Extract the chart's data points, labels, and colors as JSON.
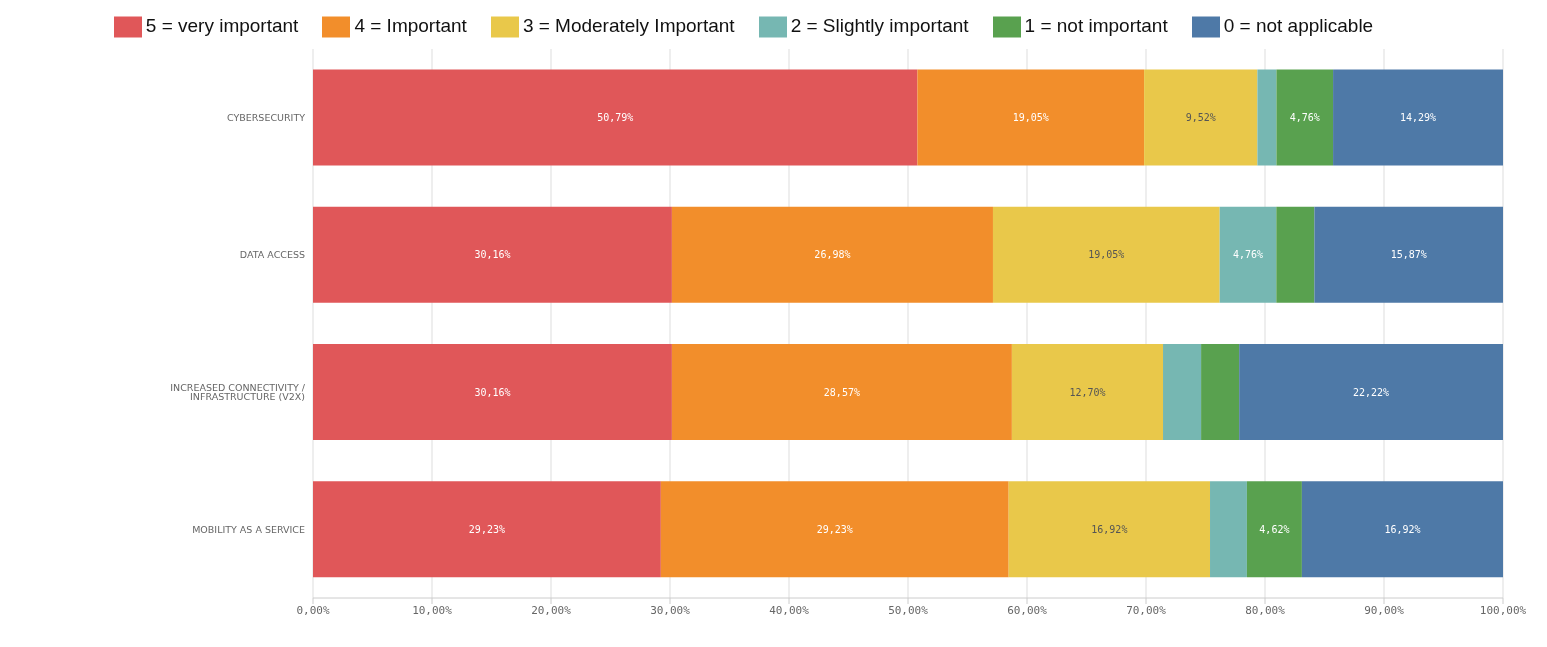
{
  "chart_data": {
    "type": "bar",
    "orientation": "horizontal",
    "stacked": true,
    "categories": [
      "CYBERSECURITY",
      "DATA ACCESS",
      "INCREASED CONNECTIVITY / INFRASTRUCTURE (V2X)",
      "MOBILITY AS A SERVICE"
    ],
    "series": [
      {
        "name": "5 = very important",
        "color": "#e05759",
        "values": [
          50.79,
          30.16,
          30.16,
          29.23
        ],
        "value_labels": [
          "50,79%",
          "30,16%",
          "30,16%",
          "29,23%"
        ]
      },
      {
        "name": "4 = Important",
        "color": "#f28e2b",
        "values": [
          19.05,
          26.98,
          28.57,
          29.23
        ],
        "value_labels": [
          "19,05%",
          "26,98%",
          "28,57%",
          "29,23%"
        ]
      },
      {
        "name": "3 = Moderately Important",
        "color": "#e9c84a",
        "values": [
          9.52,
          19.05,
          12.7,
          16.92
        ],
        "value_labels": [
          "9,52%",
          "19,05%",
          "12,70%",
          "16,92%"
        ]
      },
      {
        "name": "2 = Slightly important",
        "color": "#76b7b2",
        "values": [
          1.6,
          4.76,
          3.2,
          3.1
        ],
        "value_labels": [
          null,
          "4,76%",
          null,
          null
        ]
      },
      {
        "name": "1 = not important",
        "color": "#59a14f",
        "values": [
          4.76,
          3.2,
          3.2,
          4.62
        ],
        "value_labels": [
          "4,76%",
          null,
          null,
          "4,62%"
        ]
      },
      {
        "name": "0 = not applicable",
        "color": "#4e79a7",
        "values": [
          14.29,
          15.87,
          22.22,
          16.92
        ],
        "value_labels": [
          "14,29%",
          "15,87%",
          "22,22%",
          "16,92%"
        ]
      }
    ],
    "xlim": [
      0,
      100
    ],
    "xticks": [
      {
        "value": 0,
        "label": "0,00%"
      },
      {
        "value": 10,
        "label": "10,00%"
      },
      {
        "value": 20,
        "label": "20,00%"
      },
      {
        "value": 30,
        "label": "30,00%"
      },
      {
        "value": 40,
        "label": "40,00%"
      },
      {
        "value": 50,
        "label": "50,00%"
      },
      {
        "value": 60,
        "label": "60,00%"
      },
      {
        "value": 70,
        "label": "70,00%"
      },
      {
        "value": 80,
        "label": "80,00%"
      },
      {
        "value": 90,
        "label": "90,00%"
      },
      {
        "value": 100,
        "label": "100,00%"
      }
    ],
    "grid": "x",
    "legend": "top"
  }
}
